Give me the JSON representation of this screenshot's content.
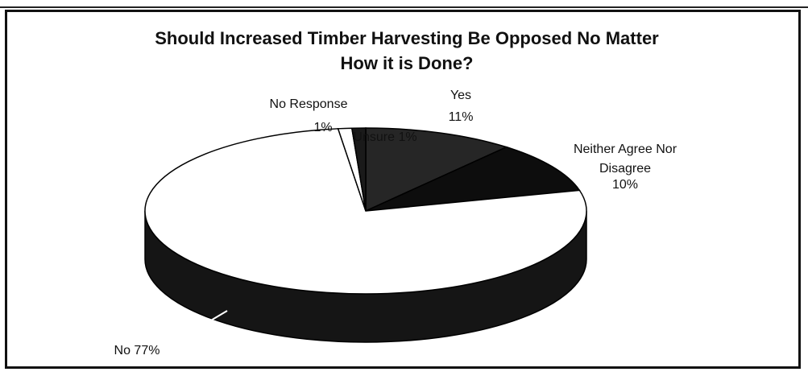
{
  "chart_data": {
    "type": "pie",
    "title": [
      "Should Increased Timber Harvesting Be Opposed No Matter",
      "How it is Done?"
    ],
    "slices": [
      {
        "label": "Yes",
        "value": 11,
        "color": "#262626"
      },
      {
        "label": "Neither Agree Nor Disagree",
        "value": 10,
        "color": "#0d0d0d"
      },
      {
        "label": "No",
        "value": 77,
        "color": "#ffffff"
      },
      {
        "label": "No Response",
        "value": 1,
        "color": "#ffffff"
      },
      {
        "label": "Unsure",
        "value": 1,
        "color": "#1a1a1a"
      }
    ],
    "labels": {
      "yes": [
        "Yes",
        "11%"
      ],
      "neither": [
        "Neither Agree Nor",
        "Disagree",
        "10%"
      ],
      "no": "No 77%",
      "no_response": [
        "No Response",
        "1%"
      ],
      "unsure": "Unsure 1%"
    }
  }
}
